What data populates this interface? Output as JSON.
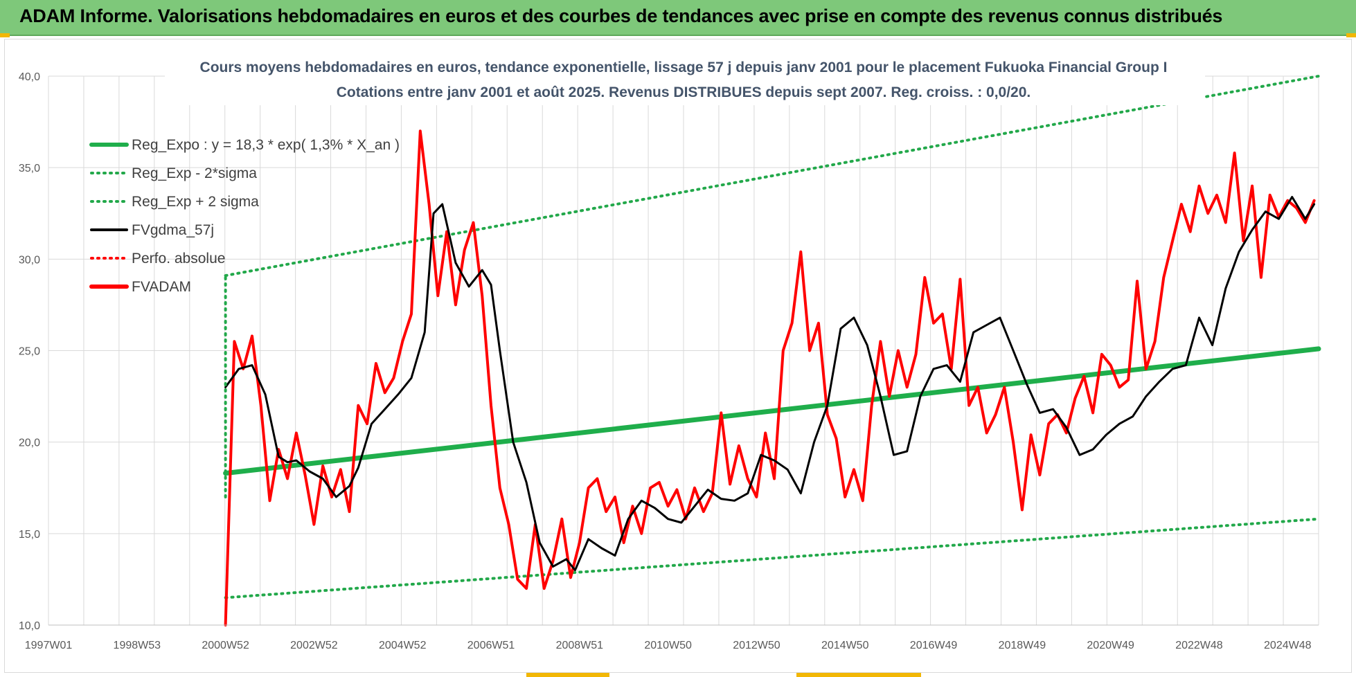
{
  "banner": {
    "title": "ADAM Informe. Valorisations hebdomadaires en euros et des courbes de tendances avec prise en compte des revenus connus distribués"
  },
  "colors": {
    "banner_bg": "#7ec87a",
    "reg_green": "#1fae4b",
    "band_green": "#22a84a",
    "smooth_black": "#000000",
    "price_red": "#ff0000",
    "grid": "#d9d9d9",
    "axis_text": "#595959",
    "title_text": "#44546a"
  },
  "chart_data": {
    "type": "line",
    "title": "Cours moyens hebdomadaires en euros, tendance exponentielle, lissage 57 j depuis janv 2001 pour le placement Fukuoka Financial Group I",
    "subtitle": "Cotations entre janv 2001 et août 2025.  Revenus DISTRIBUES depuis sept 2007.  Reg. croiss. : 0,0/20.",
    "xlabel": "",
    "ylabel": "",
    "ylim": [
      10,
      40
    ],
    "xlim": [
      1997.0,
      2025.7
    ],
    "grid": true,
    "legend_position": "top-left",
    "y_ticks": [
      "10,0",
      "15,0",
      "20,0",
      "25,0",
      "30,0",
      "35,0",
      "40,0"
    ],
    "x_ticks": [
      {
        "year": 1997.0,
        "label": "1997W01"
      },
      {
        "year": 1999.0,
        "label": "1998W53"
      },
      {
        "year": 2001.0,
        "label": "2000W52"
      },
      {
        "year": 2003.0,
        "label": "2002W52"
      },
      {
        "year": 2005.0,
        "label": "2004W52"
      },
      {
        "year": 2007.0,
        "label": "2006W51"
      },
      {
        "year": 2009.0,
        "label": "2008W51"
      },
      {
        "year": 2011.0,
        "label": "2010W50"
      },
      {
        "year": 2013.0,
        "label": "2012W50"
      },
      {
        "year": 2015.0,
        "label": "2014W50"
      },
      {
        "year": 2017.0,
        "label": "2016W49"
      },
      {
        "year": 2019.0,
        "label": "2018W49"
      },
      {
        "year": 2021.0,
        "label": "2020W49"
      },
      {
        "year": 2023.0,
        "label": "2022W48"
      },
      {
        "year": 2025.0,
        "label": "2024W48"
      }
    ],
    "legend": [
      {
        "label": "Reg_Expo : y = 18,3 * exp( 1,3% *  X_an )",
        "style": "solid-thick",
        "color": "#1fae4b"
      },
      {
        "label": "Reg_Exp - 2*sigma",
        "style": "dotted",
        "color": "#22a84a"
      },
      {
        "label": "Reg_Exp + 2 sigma",
        "style": "dotted",
        "color": "#22a84a"
      },
      {
        "label": "FVgdma_57j",
        "style": "solid",
        "color": "#000000"
      },
      {
        "label": "Perfo. absolue",
        "style": "dotted",
        "color": "#ff0000"
      },
      {
        "label": "FVADAM",
        "style": "solid-thick",
        "color": "#ff0000"
      }
    ],
    "series": [
      {
        "name": "Reg_Expo : y = 18,3 * exp( 1,3% *  X_an )",
        "x": [
          2001.0,
          2025.7
        ],
        "y": [
          18.3,
          25.1
        ]
      },
      {
        "name": "Reg_Exp - 2*sigma",
        "x": [
          2001.0,
          2025.7
        ],
        "y": [
          11.5,
          15.8
        ]
      },
      {
        "name": "Reg_Exp + 2 sigma",
        "x": [
          2001.0,
          2025.7
        ],
        "y": [
          29.1,
          40.0
        ]
      },
      {
        "name": "FVgdma_57j",
        "x": [
          2001.0,
          2001.3,
          2001.6,
          2001.9,
          2002.2,
          2002.4,
          2002.6,
          2002.9,
          2003.2,
          2003.5,
          2003.8,
          2004.0,
          2004.3,
          2004.6,
          2004.9,
          2005.2,
          2005.5,
          2005.7,
          2005.9,
          2006.2,
          2006.5,
          2006.8,
          2007.0,
          2007.2,
          2007.5,
          2007.8,
          2008.1,
          2008.4,
          2008.7,
          2008.9,
          2009.2,
          2009.5,
          2009.8,
          2010.1,
          2010.4,
          2010.7,
          2011.0,
          2011.3,
          2011.6,
          2011.9,
          2012.2,
          2012.5,
          2012.8,
          2013.1,
          2013.4,
          2013.7,
          2014.0,
          2014.3,
          2014.6,
          2014.9,
          2015.2,
          2015.5,
          2015.8,
          2016.1,
          2016.4,
          2016.7,
          2017.0,
          2017.3,
          2017.6,
          2017.9,
          2018.2,
          2018.5,
          2018.8,
          2019.1,
          2019.4,
          2019.7,
          2020.0,
          2020.3,
          2020.6,
          2020.9,
          2021.2,
          2021.5,
          2021.8,
          2022.1,
          2022.4,
          2022.7,
          2023.0,
          2023.3,
          2023.6,
          2023.9,
          2024.2,
          2024.5,
          2024.8,
          2025.1,
          2025.4,
          2025.6
        ],
        "y": [
          23.0,
          24.0,
          24.2,
          22.6,
          19.2,
          18.9,
          19.0,
          18.4,
          18.0,
          17.0,
          17.6,
          18.6,
          21.0,
          21.8,
          22.6,
          23.5,
          26.0,
          32.5,
          33.0,
          29.8,
          28.5,
          29.4,
          28.6,
          25.0,
          20.0,
          17.8,
          14.5,
          13.2,
          13.6,
          13.0,
          14.7,
          14.2,
          13.8,
          15.8,
          16.8,
          16.4,
          15.8,
          15.6,
          16.5,
          17.4,
          16.9,
          16.8,
          17.2,
          19.3,
          19.0,
          18.5,
          17.2,
          20.0,
          22.0,
          26.2,
          26.8,
          25.3,
          22.5,
          19.3,
          19.5,
          22.5,
          24.0,
          24.2,
          23.3,
          26.0,
          26.4,
          26.8,
          25.0,
          23.2,
          21.6,
          21.8,
          20.8,
          19.3,
          19.6,
          20.4,
          21.0,
          21.4,
          22.5,
          23.3,
          24.0,
          24.2,
          26.8,
          25.3,
          28.4,
          30.4,
          31.6,
          32.6,
          32.2,
          33.4,
          32.2,
          33.0
        ]
      },
      {
        "name": "Perfo. absolue",
        "x": [
          2001.0,
          2025.6
        ],
        "y": [
          10.0,
          10.0
        ]
      },
      {
        "name": "FVADAM",
        "x": [
          2001.0,
          2001.2,
          2001.4,
          2001.6,
          2001.8,
          2002.0,
          2002.2,
          2002.4,
          2002.6,
          2002.8,
          2003.0,
          2003.2,
          2003.4,
          2003.6,
          2003.8,
          2004.0,
          2004.2,
          2004.4,
          2004.6,
          2004.8,
          2005.0,
          2005.2,
          2005.4,
          2005.6,
          2005.8,
          2006.0,
          2006.2,
          2006.4,
          2006.6,
          2006.8,
          2007.0,
          2007.2,
          2007.4,
          2007.6,
          2007.8,
          2008.0,
          2008.2,
          2008.4,
          2008.6,
          2008.8,
          2009.0,
          2009.2,
          2009.4,
          2009.6,
          2009.8,
          2010.0,
          2010.2,
          2010.4,
          2010.6,
          2010.8,
          2011.0,
          2011.2,
          2011.4,
          2011.6,
          2011.8,
          2012.0,
          2012.2,
          2012.4,
          2012.6,
          2012.8,
          2013.0,
          2013.2,
          2013.4,
          2013.6,
          2013.8,
          2014.0,
          2014.2,
          2014.4,
          2014.6,
          2014.8,
          2015.0,
          2015.2,
          2015.4,
          2015.6,
          2015.8,
          2016.0,
          2016.2,
          2016.4,
          2016.6,
          2016.8,
          2017.0,
          2017.2,
          2017.4,
          2017.6,
          2017.8,
          2018.0,
          2018.2,
          2018.4,
          2018.6,
          2018.8,
          2019.0,
          2019.2,
          2019.4,
          2019.6,
          2019.8,
          2020.0,
          2020.2,
          2020.4,
          2020.6,
          2020.8,
          2021.0,
          2021.2,
          2021.4,
          2021.6,
          2021.8,
          2022.0,
          2022.2,
          2022.4,
          2022.6,
          2022.8,
          2023.0,
          2023.2,
          2023.4,
          2023.6,
          2023.8,
          2024.0,
          2024.2,
          2024.4,
          2024.6,
          2024.8,
          2025.0,
          2025.2,
          2025.4,
          2025.6
        ],
        "y": [
          10.0,
          25.5,
          24.0,
          25.8,
          22.0,
          16.8,
          19.6,
          18.0,
          20.5,
          18.2,
          15.5,
          18.7,
          17.0,
          18.5,
          16.2,
          22.0,
          21.0,
          24.3,
          22.7,
          23.5,
          25.5,
          27.0,
          37.0,
          33.0,
          28.0,
          31.5,
          27.5,
          30.5,
          32.0,
          28.0,
          22.0,
          17.5,
          15.5,
          12.5,
          12.0,
          15.5,
          12.0,
          13.5,
          15.8,
          12.6,
          14.5,
          17.5,
          18.0,
          16.2,
          17.0,
          14.5,
          16.5,
          15.0,
          17.5,
          17.8,
          16.5,
          17.4,
          15.8,
          17.5,
          16.2,
          17.2,
          21.6,
          17.7,
          19.8,
          18.0,
          17.0,
          20.5,
          18.0,
          25.0,
          26.5,
          30.4,
          25.0,
          26.5,
          21.5,
          20.2,
          17.0,
          18.5,
          16.8,
          22.0,
          25.5,
          22.5,
          25.0,
          23.0,
          24.8,
          29.0,
          26.5,
          27.0,
          24.0,
          28.9,
          22.0,
          23.0,
          20.5,
          21.5,
          23.0,
          20.0,
          16.3,
          20.4,
          18.2,
          21.0,
          21.5,
          20.5,
          22.4,
          23.6,
          21.6,
          24.8,
          24.2,
          23.0,
          23.4,
          28.8,
          24.0,
          25.5,
          29.0,
          31.0,
          33.0,
          31.5,
          34.0,
          32.5,
          33.5,
          32.0,
          35.8,
          31.0,
          34.0,
          29.0,
          33.5,
          32.3,
          33.2,
          32.8,
          32.0,
          33.2
        ]
      }
    ]
  }
}
